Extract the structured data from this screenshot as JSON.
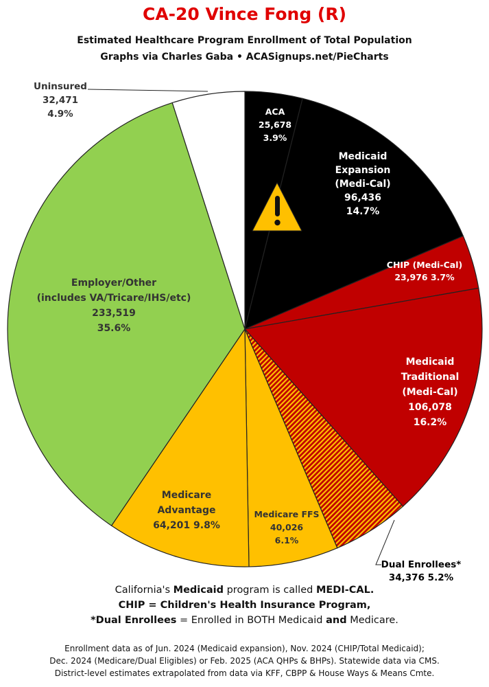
{
  "header": {
    "title": "CA-20 Vince Fong (R)",
    "title_color": "#e00000",
    "subtitle1": "Estimated Healthcare Program Enrollment of Total Population",
    "subtitle2": "Graphs via Charles Gaba  •  ACASignups.net/PieCharts"
  },
  "chart_data": {
    "type": "pie",
    "start": "12 o'clock, clockwise",
    "slices": [
      {
        "label": "ACA",
        "value": 25678,
        "percent": "3.9%",
        "color": "#000000",
        "text_color": "#ffffff",
        "text": [
          "ACA",
          "25,678",
          "3.9%"
        ]
      },
      {
        "label": "Medicaid Expansion (Medi-Cal)",
        "value": 96436,
        "percent": "14.7%",
        "color": "#000000",
        "text_color": "#ffffff",
        "text": [
          "Medicaid",
          "Expansion",
          "(Medi-Cal)",
          "96,436",
          "14.7%"
        ]
      },
      {
        "label": "CHIP (Medi-Cal)",
        "value": 23976,
        "percent": "3.7%",
        "color": "#c00000",
        "text_color": "#ffffff",
        "text": [
          "CHIP (Medi-Cal)",
          "23,976 3.7%"
        ]
      },
      {
        "label": "Medicaid Traditional (Medi-Cal)",
        "value": 106078,
        "percent": "16.2%",
        "color": "#c00000",
        "text_color": "#ffffff",
        "text": [
          "Medicaid",
          "Traditional",
          "(Medi-Cal)",
          "106,078",
          "16.2%"
        ]
      },
      {
        "label": "Dual Enrollees*",
        "value": 34376,
        "percent": "5.2%",
        "color": "hatch",
        "text_color": "#000000",
        "text": [
          "Dual Enrollees*",
          "34,376 5.2%"
        ]
      },
      {
        "label": "Medicare FFS",
        "value": 40026,
        "percent": "6.1%",
        "color": "#ffc000",
        "text_color": "#333333",
        "text": [
          "Medicare FFS",
          "40,026",
          "6.1%"
        ]
      },
      {
        "label": "Medicare Advantage",
        "value": 64201,
        "percent": "9.8%",
        "color": "#ffc000",
        "text_color": "#333333",
        "text": [
          "Medicare",
          "Advantage",
          "64,201 9.8%"
        ]
      },
      {
        "label": "Employer/Other (includes VA/Tricare/IHS/etc)",
        "value": 233519,
        "percent": "35.6%",
        "color": "#92d050",
        "text_color": "#333333",
        "text": [
          "Employer/Other",
          "(includes VA/Tricare/IHS/etc)",
          "233,519",
          "35.6%"
        ]
      },
      {
        "label": "Uninsured",
        "value": 32471,
        "percent": "4.9%",
        "color": "#ffffff",
        "text_color": "#333333",
        "text": [
          "Uninsured",
          "32,471",
          "4.9%"
        ]
      }
    ],
    "warning_icon": "warning-triangle-icon",
    "warning_color": "#ffc000"
  },
  "notes": {
    "line1_pre": "California's ",
    "line1_bold1": "Medicaid",
    "line1_mid": " program is called ",
    "line1_bold2": "MEDI-CAL.",
    "line2": "CHIP = Children's Health Insurance Program,",
    "line3_bold1": "*Dual Enrollees",
    "line3_mid": " = Enrolled in BOTH Medicaid ",
    "line3_bold2": "and",
    "line3_end": " Medicare."
  },
  "footer": {
    "line1": "Enrollment data as of Jun. 2024 (Medicaid expansion), Nov. 2024 (CHIP/Total Medicaid);",
    "line2": "Dec. 2024 (Medicare/Dual Eligibles) or Feb. 2025 (ACA QHPs & BHPs). Statewide data via CMS.",
    "line3": "District-level estimates extrapolated from data via KFF, CBPP & House Ways & Means Cmte."
  }
}
